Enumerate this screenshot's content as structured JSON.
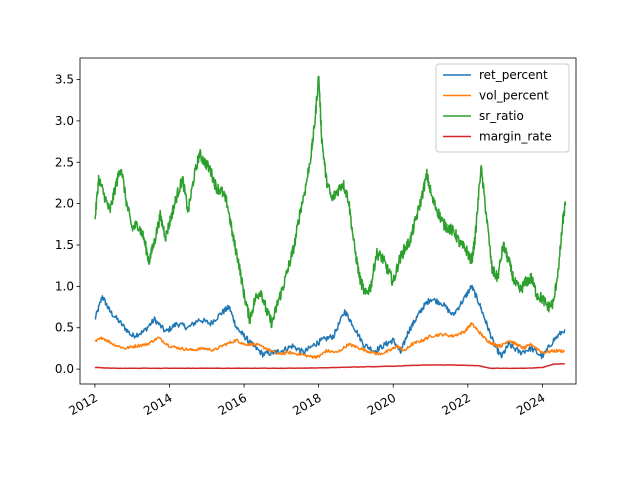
{
  "chart_data": {
    "type": "line",
    "title": "",
    "xlabel": "",
    "ylabel": "",
    "xlim": [
      2011.6,
      2024.9
    ],
    "ylim": [
      -0.18,
      3.76
    ],
    "x_ticks": [
      {
        "value": 2012,
        "label": "2012"
      },
      {
        "value": 2014,
        "label": "2014"
      },
      {
        "value": 2016,
        "label": "2016"
      },
      {
        "value": 2018,
        "label": "2018"
      },
      {
        "value": 2020,
        "label": "2020"
      },
      {
        "value": 2022,
        "label": "2022"
      },
      {
        "value": 2024,
        "label": "2024"
      }
    ],
    "y_ticks": [
      {
        "value": 0.0,
        "label": "0.0"
      },
      {
        "value": 0.5,
        "label": "0.5"
      },
      {
        "value": 1.0,
        "label": "1.0"
      },
      {
        "value": 1.5,
        "label": "1.5"
      },
      {
        "value": 2.0,
        "label": "2.0"
      },
      {
        "value": 2.5,
        "label": "2.5"
      },
      {
        "value": 3.0,
        "label": "3.0"
      },
      {
        "value": 3.5,
        "label": "3.5"
      }
    ],
    "grid": false,
    "legend_position": "top-right",
    "series": [
      {
        "name": "ret_percent",
        "color": "#1f77b4",
        "x": [
          2012.0,
          2012.2,
          2012.4,
          2012.7,
          2013.0,
          2013.3,
          2013.6,
          2013.9,
          2014.2,
          2014.5,
          2014.8,
          2015.1,
          2015.4,
          2015.6,
          2015.8,
          2016.0,
          2016.2,
          2016.5,
          2016.8,
          2017.0,
          2017.3,
          2017.6,
          2017.9,
          2018.1,
          2018.4,
          2018.7,
          2018.9,
          2019.2,
          2019.5,
          2019.8,
          2020.0,
          2020.2,
          2020.4,
          2020.6,
          2020.8,
          2021.0,
          2021.3,
          2021.6,
          2021.9,
          2022.1,
          2022.3,
          2022.5,
          2022.7,
          2022.9,
          2023.1,
          2023.4,
          2023.7,
          2024.0,
          2024.3,
          2024.6
        ],
        "y": [
          0.6,
          0.88,
          0.7,
          0.55,
          0.4,
          0.45,
          0.6,
          0.45,
          0.55,
          0.5,
          0.6,
          0.55,
          0.68,
          0.75,
          0.5,
          0.4,
          0.3,
          0.18,
          0.2,
          0.22,
          0.28,
          0.2,
          0.3,
          0.35,
          0.4,
          0.7,
          0.55,
          0.3,
          0.22,
          0.3,
          0.35,
          0.2,
          0.45,
          0.6,
          0.75,
          0.85,
          0.8,
          0.65,
          0.85,
          1.0,
          0.8,
          0.55,
          0.3,
          0.15,
          0.3,
          0.2,
          0.25,
          0.15,
          0.35,
          0.48
        ]
      },
      {
        "name": "vol_percent",
        "color": "#ff7f0e",
        "x": [
          2012.0,
          2012.2,
          2012.5,
          2012.8,
          2013.1,
          2013.4,
          2013.7,
          2014.0,
          2014.3,
          2014.6,
          2014.9,
          2015.2,
          2015.5,
          2015.8,
          2016.0,
          2016.3,
          2016.6,
          2016.9,
          2017.2,
          2017.5,
          2017.8,
          2018.0,
          2018.2,
          2018.5,
          2018.8,
          2019.0,
          2019.3,
          2019.6,
          2019.9,
          2020.1,
          2020.3,
          2020.5,
          2020.8,
          2021.0,
          2021.3,
          2021.6,
          2021.9,
          2022.1,
          2022.3,
          2022.5,
          2022.7,
          2022.9,
          2023.1,
          2023.3,
          2023.5,
          2023.7,
          2024.0,
          2024.3,
          2024.6
        ],
        "y": [
          0.33,
          0.38,
          0.3,
          0.25,
          0.28,
          0.3,
          0.38,
          0.28,
          0.25,
          0.23,
          0.25,
          0.23,
          0.3,
          0.35,
          0.3,
          0.3,
          0.25,
          0.18,
          0.2,
          0.18,
          0.15,
          0.15,
          0.22,
          0.2,
          0.3,
          0.27,
          0.22,
          0.18,
          0.22,
          0.28,
          0.22,
          0.3,
          0.35,
          0.4,
          0.42,
          0.4,
          0.45,
          0.55,
          0.45,
          0.35,
          0.3,
          0.28,
          0.35,
          0.3,
          0.25,
          0.3,
          0.2,
          0.22,
          0.22
        ]
      },
      {
        "name": "sr_ratio",
        "color": "#2ca02c",
        "x": [
          2012.0,
          2012.1,
          2012.25,
          2012.4,
          2012.55,
          2012.7,
          2012.85,
          2013.0,
          2013.15,
          2013.3,
          2013.45,
          2013.6,
          2013.75,
          2013.9,
          2014.05,
          2014.2,
          2014.35,
          2014.5,
          2014.65,
          2014.8,
          2014.95,
          2015.1,
          2015.25,
          2015.4,
          2015.55,
          2015.7,
          2015.85,
          2016.0,
          2016.15,
          2016.3,
          2016.45,
          2016.6,
          2016.75,
          2016.9,
          2017.05,
          2017.2,
          2017.35,
          2017.5,
          2017.65,
          2017.8,
          2017.9,
          2018.0,
          2018.08,
          2018.2,
          2018.35,
          2018.5,
          2018.65,
          2018.8,
          2018.95,
          2019.1,
          2019.25,
          2019.4,
          2019.55,
          2019.7,
          2019.85,
          2020.0,
          2020.15,
          2020.3,
          2020.45,
          2020.6,
          2020.75,
          2020.9,
          2021.05,
          2021.2,
          2021.35,
          2021.5,
          2021.65,
          2021.8,
          2021.95,
          2022.1,
          2022.2,
          2022.35,
          2022.5,
          2022.65,
          2022.8,
          2022.95,
          2023.1,
          2023.25,
          2023.4,
          2023.55,
          2023.7,
          2023.85,
          2024.0,
          2024.15,
          2024.3,
          2024.45,
          2024.55,
          2024.62
        ],
        "y": [
          1.8,
          2.3,
          2.1,
          1.9,
          2.2,
          2.45,
          2.0,
          1.7,
          1.75,
          1.6,
          1.3,
          1.55,
          1.85,
          1.6,
          1.85,
          2.1,
          2.3,
          1.9,
          2.3,
          2.6,
          2.5,
          2.4,
          2.2,
          2.15,
          2.0,
          1.6,
          1.3,
          0.9,
          0.6,
          0.85,
          0.95,
          0.7,
          0.55,
          0.8,
          1.0,
          1.25,
          1.5,
          1.9,
          2.2,
          2.6,
          3.0,
          3.55,
          2.8,
          2.3,
          2.05,
          2.15,
          2.25,
          2.05,
          1.5,
          1.1,
          0.9,
          1.0,
          1.4,
          1.35,
          1.2,
          1.05,
          1.3,
          1.45,
          1.55,
          1.8,
          2.05,
          2.35,
          2.05,
          1.9,
          1.75,
          1.7,
          1.65,
          1.5,
          1.45,
          1.3,
          1.6,
          2.45,
          1.85,
          1.2,
          1.1,
          1.5,
          1.3,
          1.05,
          0.95,
          1.05,
          1.1,
          0.9,
          0.85,
          0.75,
          0.8,
          1.3,
          1.8,
          2.0
        ]
      },
      {
        "name": "margin_rate",
        "color": "#d62728",
        "x": [
          2012.0,
          2012.5,
          2013.0,
          2014.0,
          2015.0,
          2016.0,
          2017.0,
          2018.0,
          2018.5,
          2019.0,
          2019.5,
          2020.0,
          2020.5,
          2021.0,
          2021.5,
          2022.0,
          2022.3,
          2022.6,
          2023.0,
          2023.5,
          2024.0,
          2024.3,
          2024.6
        ],
        "y": [
          0.02,
          0.01,
          0.01,
          0.01,
          0.01,
          0.01,
          0.01,
          0.015,
          0.02,
          0.025,
          0.03,
          0.035,
          0.045,
          0.05,
          0.05,
          0.045,
          0.04,
          0.01,
          0.01,
          0.01,
          0.02,
          0.06,
          0.065
        ]
      }
    ]
  }
}
